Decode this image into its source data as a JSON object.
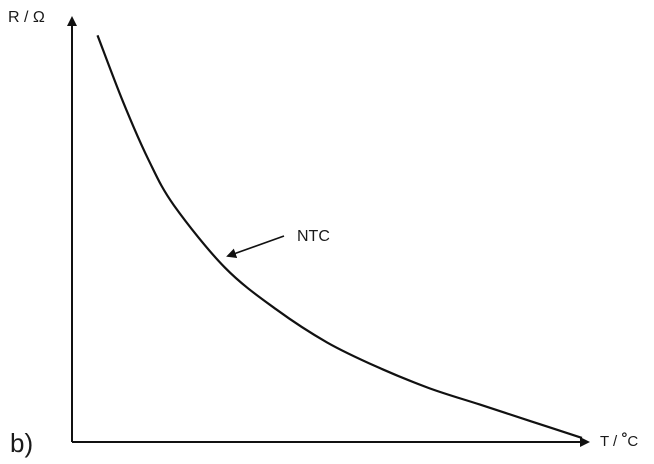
{
  "figure": {
    "panel_label": "b)",
    "y_axis_label": "R / Ω",
    "x_axis_label_prefix": "T / ",
    "x_axis_label_degree": "°",
    "x_axis_label_unit": "C",
    "curve_label": "NTC"
  },
  "chart_data": {
    "type": "line",
    "title": "",
    "xlabel": "T / °C",
    "ylabel": "R / Ω",
    "grid": false,
    "series": [
      {
        "name": "NTC",
        "x": [
          0.05,
          0.1,
          0.15,
          0.2,
          0.3,
          0.4,
          0.5,
          0.6,
          0.7,
          0.8,
          0.9,
          1.0
        ],
        "y": [
          0.98,
          0.82,
          0.68,
          0.57,
          0.42,
          0.32,
          0.24,
          0.18,
          0.13,
          0.09,
          0.05,
          0.01
        ],
        "color": "#111111"
      }
    ]
  }
}
